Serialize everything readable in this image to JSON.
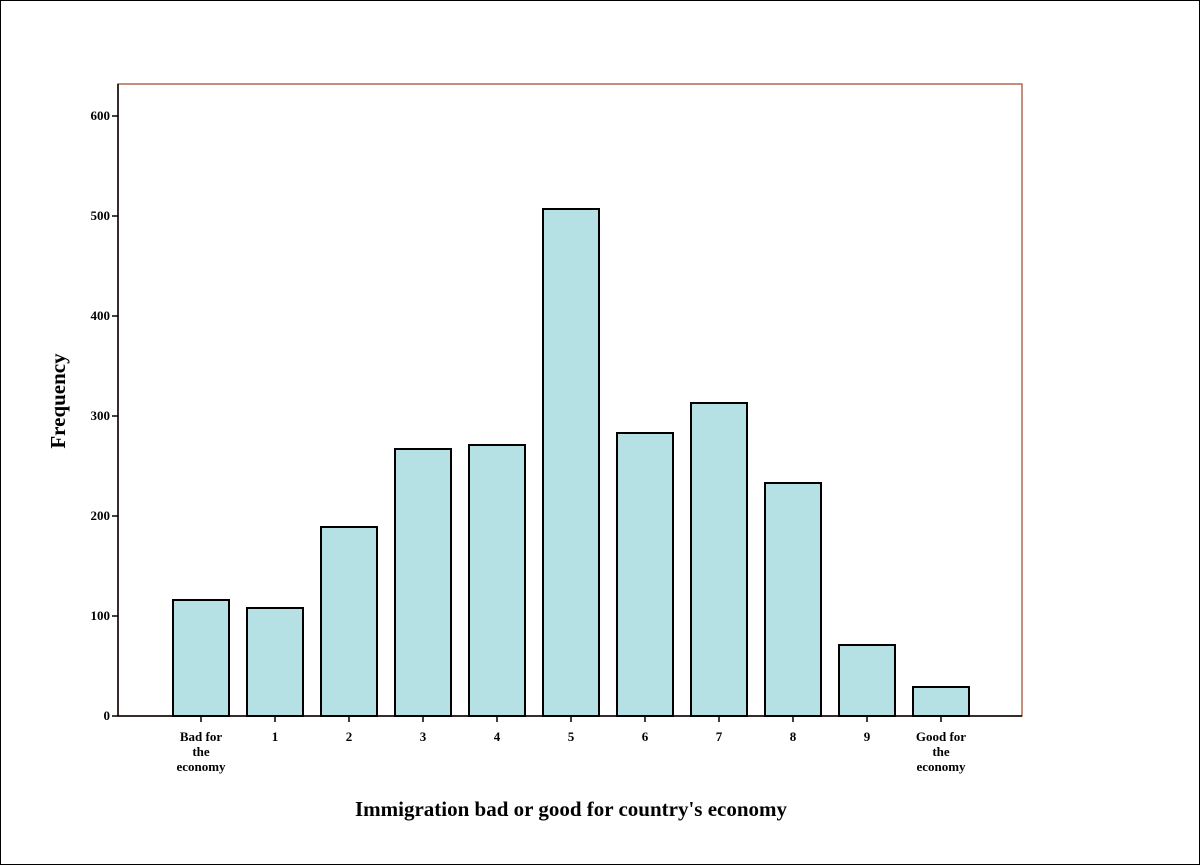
{
  "chart_data": {
    "type": "bar",
    "title": "",
    "xlabel": "Immigration bad or good for country's economy",
    "ylabel": "Frequency",
    "ylim": [
      0,
      630
    ],
    "yticks": [
      0,
      100,
      200,
      300,
      400,
      500,
      600
    ],
    "grid": false,
    "legend": "none",
    "categories": [
      [
        "Bad for",
        "the",
        "economy"
      ],
      [
        "1"
      ],
      [
        "2"
      ],
      [
        "3"
      ],
      [
        "4"
      ],
      [
        "5"
      ],
      [
        "6"
      ],
      [
        "7"
      ],
      [
        "8"
      ],
      [
        "9"
      ],
      [
        "Good for",
        "the",
        "economy"
      ]
    ],
    "values": [
      116,
      108,
      189,
      267,
      271,
      507,
      283,
      313,
      233,
      71,
      29
    ],
    "colors": {
      "bar_fill": "#b5e0e4",
      "bar_stroke": "#000000",
      "plot_frame": "#b06a52",
      "axis": "#000000"
    }
  }
}
